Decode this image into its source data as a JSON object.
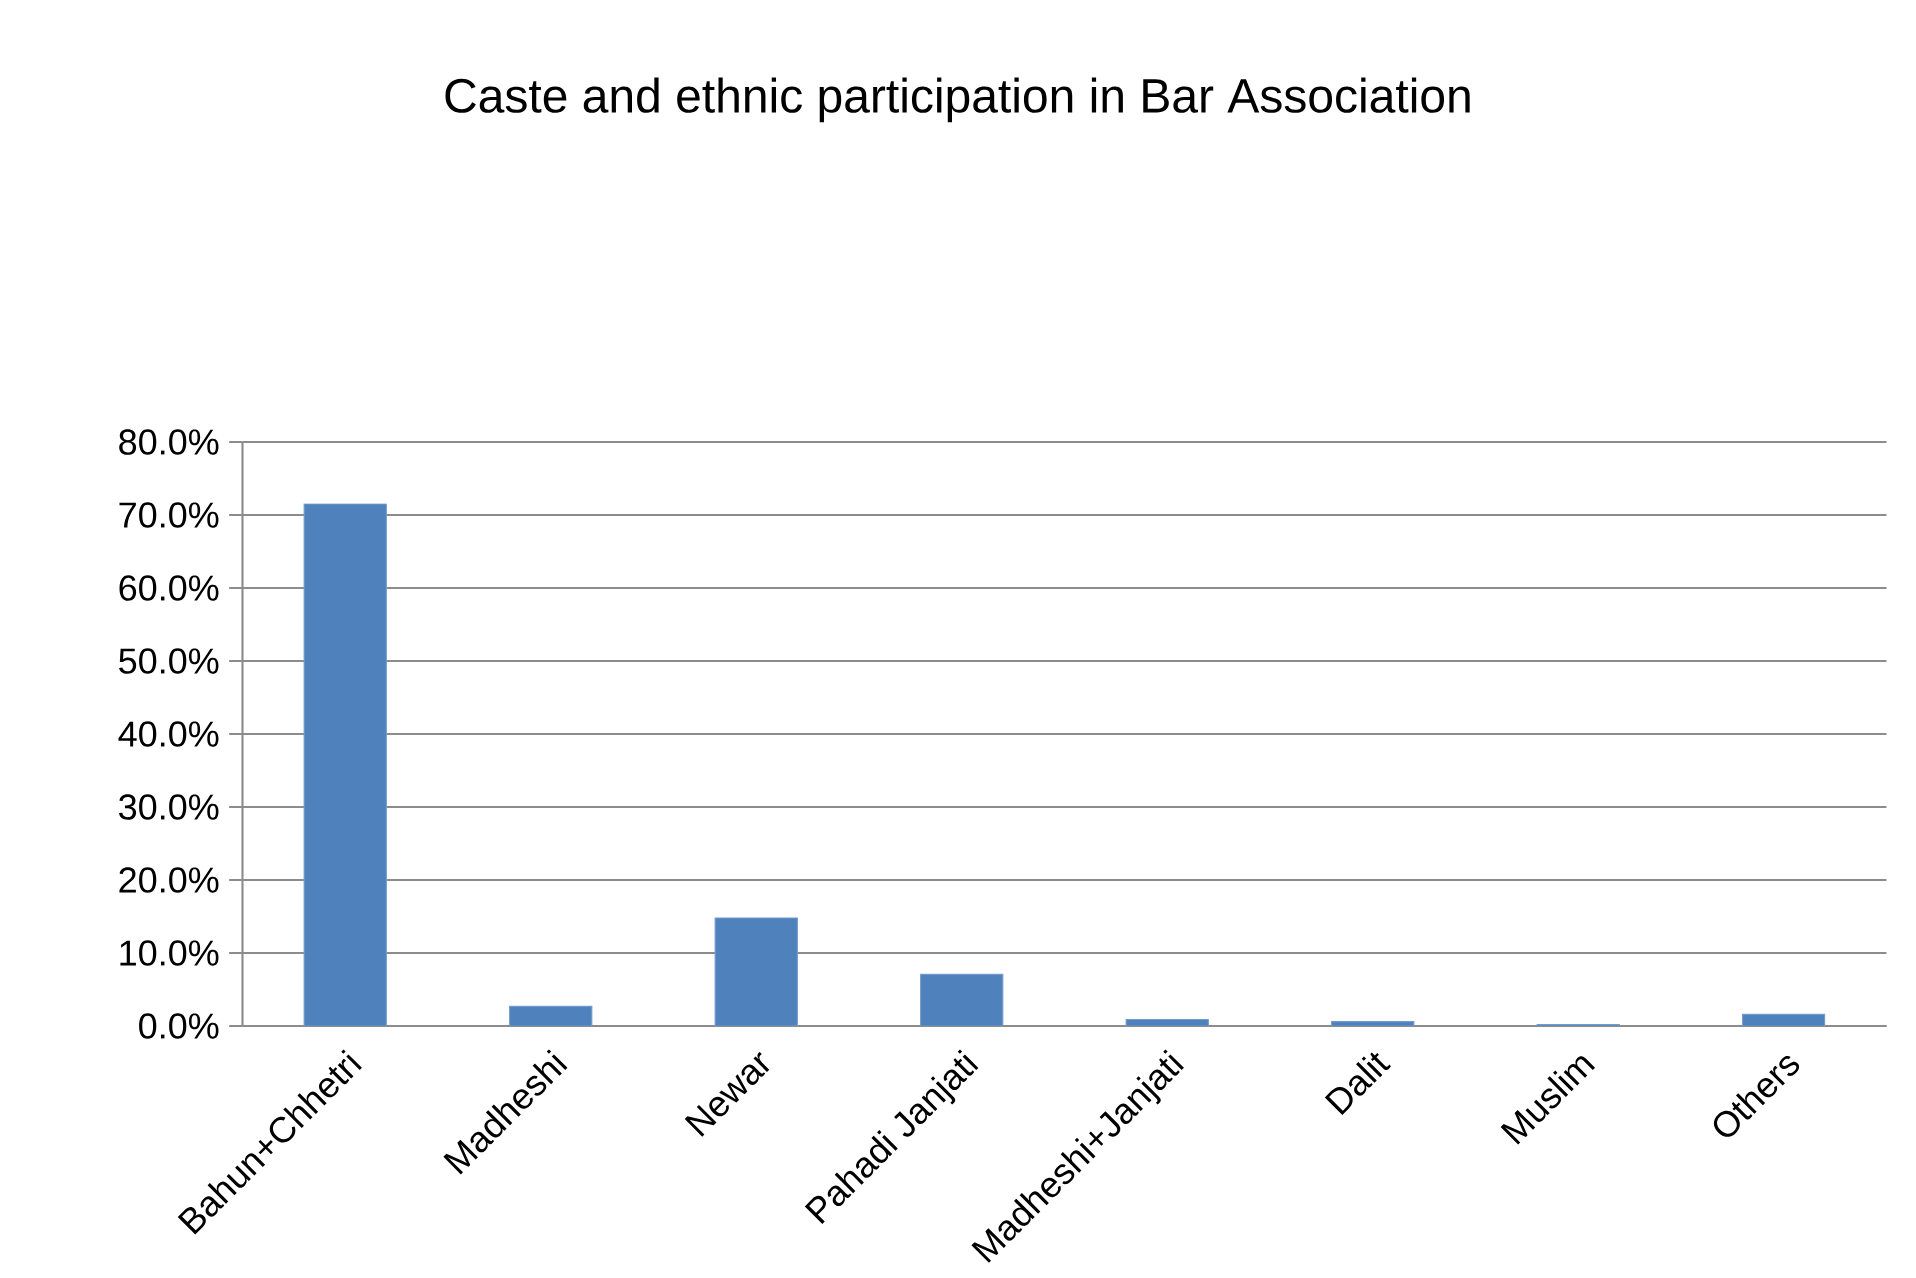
{
  "chart_data": {
    "type": "bar",
    "title": "Caste and ethnic participation in Bar Association",
    "categories": [
      "Bahun+Chhetri",
      "Madheshi",
      "Newar",
      "Pahadi Janjati",
      "Madheshi+Janjati",
      "Dalit",
      "Muslim",
      "Others"
    ],
    "values": [
      71.5,
      2.7,
      14.8,
      7.1,
      0.9,
      0.6,
      0.2,
      1.6
    ],
    "color": "#4f81bd",
    "ylim": [
      0,
      80
    ],
    "yticks": [
      {
        "value": 0,
        "label": "0.0%"
      },
      {
        "value": 10,
        "label": "10.0%"
      },
      {
        "value": 20,
        "label": "20.0%"
      },
      {
        "value": 30,
        "label": "30.0%"
      },
      {
        "value": 40,
        "label": "40.0%"
      },
      {
        "value": 50,
        "label": "50.0%"
      },
      {
        "value": 60,
        "label": "60.0%"
      },
      {
        "value": 70,
        "label": "70.0%"
      },
      {
        "value": 80,
        "label": "80.0%"
      }
    ],
    "grid": "y"
  }
}
